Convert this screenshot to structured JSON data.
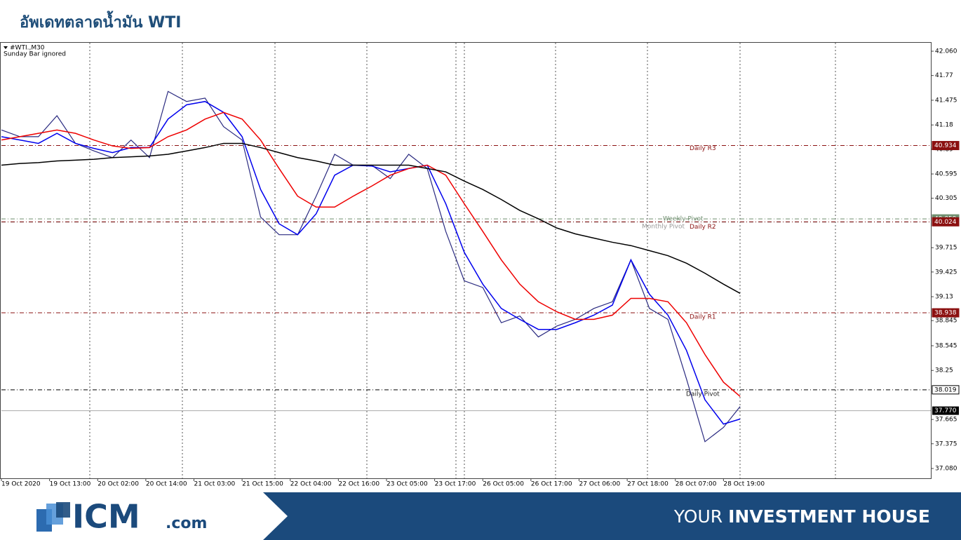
{
  "header": {
    "title": "อัพเดทตลาดน้ำมัน WTI"
  },
  "chart_data": {
    "type": "line",
    "symbol_label": "#WTI.,M30",
    "note": "Sunday Bar ignored",
    "x": [
      0,
      10,
      20,
      30,
      40,
      50,
      60,
      70,
      80,
      90,
      100,
      110,
      120,
      130,
      140,
      150,
      160,
      170,
      180,
      190,
      200,
      210,
      220,
      230,
      240,
      250,
      260,
      270,
      280,
      290,
      300,
      310,
      320,
      330,
      340,
      350,
      360,
      370,
      380,
      390,
      399
    ],
    "xlim": [
      0,
      502
    ],
    "xticks": [
      {
        "value": 0,
        "label": "19 Oct 2020"
      },
      {
        "value": 26,
        "label": "19 Oct 13:00"
      },
      {
        "value": 52,
        "label": "20 Oct 02:00"
      },
      {
        "value": 78,
        "label": "20 Oct 14:00"
      },
      {
        "value": 104,
        "label": "21 Oct 03:00"
      },
      {
        "value": 130,
        "label": "21 Oct 15:00"
      },
      {
        "value": 156,
        "label": "22 Oct 04:00"
      },
      {
        "value": 182,
        "label": "22 Oct 16:00"
      },
      {
        "value": 208,
        "label": "23 Oct 05:00"
      },
      {
        "value": 234,
        "label": "23 Oct 17:00"
      },
      {
        "value": 260,
        "label": "26 Oct 05:00"
      },
      {
        "value": 286,
        "label": "26 Oct 17:00"
      },
      {
        "value": 312,
        "label": "27 Oct 06:00"
      },
      {
        "value": 338,
        "label": "27 Oct 18:00"
      },
      {
        "value": 364,
        "label": "28 Oct 07:00"
      },
      {
        "value": 390,
        "label": "28 Oct 19:00"
      }
    ],
    "ylim": [
      36.963,
      42.169
    ],
    "yticks": [
      {
        "value": 42.06,
        "label": "42.060"
      },
      41.77,
      41.475,
      41.18,
      40.89,
      40.595,
      40.305,
      39.715,
      39.425,
      39.13,
      38.845,
      38.545,
      38.25,
      37.665,
      37.375,
      {
        "value": 37.08,
        "label": "37.080"
      }
    ],
    "series": [
      {
        "color": "#2a2a80",
        "values": [
          41.12,
          41.04,
          41.04,
          41.29,
          40.96,
          40.87,
          40.79,
          41.0,
          40.79,
          41.58,
          41.46,
          41.5,
          41.16,
          41.0,
          40.08,
          39.87,
          39.87,
          40.33,
          40.83,
          40.7,
          40.7,
          40.54,
          40.83,
          40.66,
          39.91,
          39.32,
          39.24,
          38.82,
          38.9,
          38.65,
          38.78,
          38.86,
          38.99,
          39.07,
          39.57,
          38.99,
          38.86,
          38.15,
          37.4,
          37.57,
          37.82
        ]
      },
      {
        "color": "#0000ee",
        "values": [
          41.04,
          41.0,
          40.96,
          41.08,
          40.96,
          40.9,
          40.85,
          40.91,
          40.91,
          41.25,
          41.42,
          41.46,
          41.33,
          41.04,
          40.41,
          40.0,
          39.87,
          40.12,
          40.58,
          40.7,
          40.69,
          40.62,
          40.66,
          40.7,
          40.24,
          39.66,
          39.28,
          38.99,
          38.86,
          38.74,
          38.74,
          38.82,
          38.91,
          39.03,
          39.57,
          39.16,
          38.91,
          38.49,
          37.9,
          37.61,
          37.67
        ]
      },
      {
        "color": "#ee0000",
        "values": [
          41.0,
          41.04,
          41.08,
          41.12,
          41.08,
          41.0,
          40.93,
          40.9,
          40.91,
          41.04,
          41.12,
          41.25,
          41.33,
          41.25,
          41.0,
          40.66,
          40.33,
          40.2,
          40.2,
          40.33,
          40.45,
          40.58,
          40.66,
          40.7,
          40.58,
          40.24,
          39.91,
          39.57,
          39.28,
          39.07,
          38.95,
          38.86,
          38.86,
          38.91,
          39.11,
          39.11,
          39.07,
          38.82,
          38.44,
          38.11,
          37.94
        ]
      },
      {
        "color": "#000000",
        "values": [
          40.7,
          40.72,
          40.73,
          40.75,
          40.76,
          40.77,
          40.79,
          40.8,
          40.81,
          40.83,
          40.87,
          40.91,
          40.96,
          40.96,
          40.91,
          40.85,
          40.79,
          40.75,
          40.7,
          40.7,
          40.7,
          40.7,
          40.7,
          40.66,
          40.62,
          40.51,
          40.41,
          40.29,
          40.16,
          40.06,
          39.95,
          39.88,
          39.83,
          39.78,
          39.74,
          39.68,
          39.62,
          39.53,
          39.41,
          39.28,
          39.17
        ]
      }
    ],
    "levels": [
      {
        "name": "Daily R3",
        "value": 40.934,
        "color": "#8b1010",
        "tag": true
      },
      {
        "name": "Weekly Pivot",
        "value": 40.059,
        "color": "#6f8f6f",
        "tag": true
      },
      {
        "name": "Monthly Pivot",
        "value": 40.02,
        "color": "#999999",
        "tag": false
      },
      {
        "name": "Daily R2",
        "value": 40.024,
        "color": "#8b1010",
        "tag": true
      },
      {
        "name": "Daily R1",
        "value": 38.938,
        "color": "#8b1010",
        "tag": true
      },
      {
        "name": "Daily Pivot",
        "value": 38.019,
        "color": "#000000",
        "tag": true
      }
    ],
    "last_price": {
      "value": 37.77,
      "label": "37.770"
    }
  },
  "footer": {
    "brand": "ICM",
    "domain": ".com",
    "tagline_light": "YOUR",
    "tagline_bold": "INVESTMENT HOUSE"
  }
}
